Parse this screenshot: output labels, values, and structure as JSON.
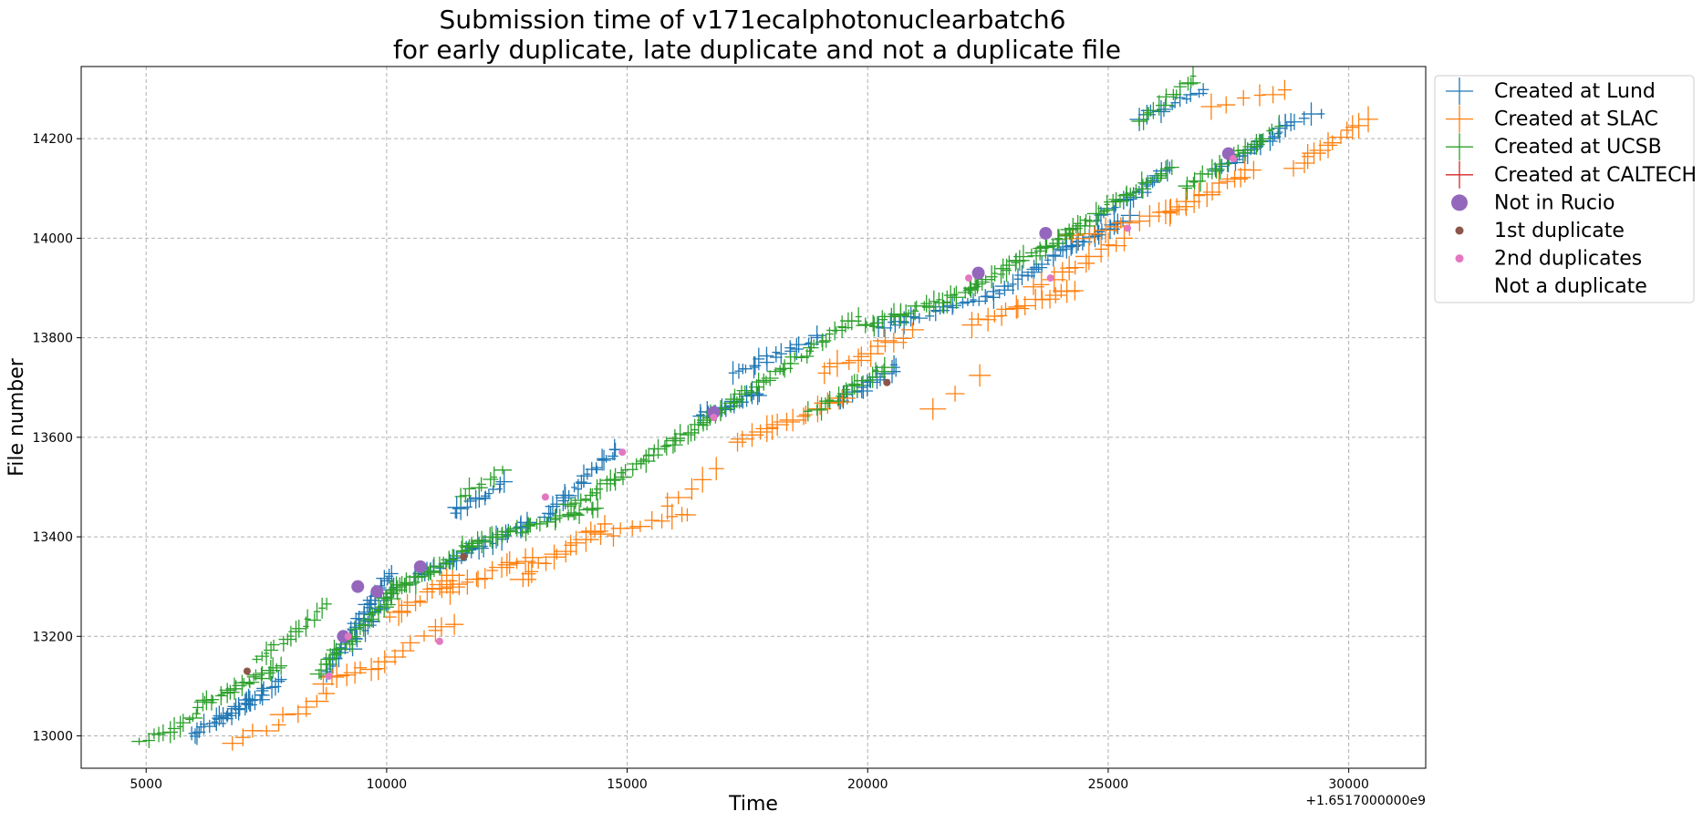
{
  "chart_data": {
    "type": "scatter",
    "title": "Submission time of v171ecalphotonuclearbatch6",
    "subtitle": "for early duplicate, late duplicate and not a duplicate file",
    "xlabel": "Time",
    "ylabel": "File number",
    "x_offset_label": "+1.6517000000e9",
    "xlim": [
      3650,
      31600
    ],
    "ylim": [
      12935,
      14345
    ],
    "x_ticks": [
      5000,
      10000,
      15000,
      20000,
      25000,
      30000
    ],
    "x_tick_labels": [
      "5000",
      "10000",
      "15000",
      "20000",
      "25000",
      "30000"
    ],
    "y_ticks": [
      13000,
      13200,
      13400,
      13600,
      13800,
      14000,
      14200
    ],
    "y_tick_labels": [
      "13000",
      "13200",
      "13400",
      "13600",
      "13800",
      "14000",
      "14200"
    ],
    "grid": true,
    "legend_position": "outside-top-right",
    "colors": {
      "lund": "#1f77b4",
      "slac": "#ff7f0e",
      "ucsb": "#2ca02c",
      "caltech": "#d62728",
      "not_in_rucio": "#9467bd",
      "first_duplicate": "#8c564b",
      "second_duplicates": "#e377c2",
      "grid": "#b0b0b0"
    },
    "legend": [
      {
        "label": "Created at Lund",
        "marker": "plus",
        "color": "#1f77b4"
      },
      {
        "label": "Created at SLAC",
        "marker": "plus",
        "color": "#ff7f0e"
      },
      {
        "label": "Created at UCSB",
        "marker": "plus",
        "color": "#2ca02c"
      },
      {
        "label": "Created at CALTECH",
        "marker": "plus",
        "color": "#d62728"
      },
      {
        "label": "Not in Rucio",
        "marker": "circle-large",
        "color": "#9467bd"
      },
      {
        "label": "1st duplicate",
        "marker": "circle-small",
        "color": "#8c564b"
      },
      {
        "label": "2nd duplicates",
        "marker": "circle-small",
        "color": "#e377c2"
      },
      {
        "label": "Not a duplicate",
        "marker": "none",
        "color": "#ffffff"
      }
    ],
    "series": [
      {
        "name": "Created at Lund",
        "marker": "plus",
        "color": "#1f77b4",
        "segments": [
          {
            "x": [
              5900,
              7400
            ],
            "y": [
              13000,
              13080
            ],
            "n": 22
          },
          {
            "x": [
              6500,
              7800
            ],
            "y": [
              13030,
              13110
            ],
            "n": 18
          },
          {
            "x": [
              8700,
              10100
            ],
            "y": [
              13120,
              13330
            ],
            "n": 35
          },
          {
            "x": [
              9300,
              10200
            ],
            "y": [
              13180,
              13300
            ],
            "n": 14
          },
          {
            "x": [
              10600,
              13000
            ],
            "y": [
              13320,
              13430
            ],
            "n": 30
          },
          {
            "x": [
              11400,
              12500
            ],
            "y": [
              13450,
              13510
            ],
            "n": 14
          },
          {
            "x": [
              13300,
              14800
            ],
            "y": [
              13440,
              13580
            ],
            "n": 24
          },
          {
            "x": [
              16500,
              17800
            ],
            "y": [
              13640,
              13690
            ],
            "n": 18
          },
          {
            "x": [
              17200,
              19000
            ],
            "y": [
              13730,
              13800
            ],
            "n": 20
          },
          {
            "x": [
              19400,
              20600
            ],
            "y": [
              13670,
              13740
            ],
            "n": 18
          },
          {
            "x": [
              20200,
              22400
            ],
            "y": [
              13820,
              13880
            ],
            "n": 20
          },
          {
            "x": [
              22500,
              24300
            ],
            "y": [
              13880,
              13990
            ],
            "n": 24
          },
          {
            "x": [
              24200,
              25400
            ],
            "y": [
              13980,
              14040
            ],
            "n": 16
          },
          {
            "x": [
              24800,
              26300
            ],
            "y": [
              14040,
              14140
            ],
            "n": 20
          },
          {
            "x": [
              25700,
              27000
            ],
            "y": [
              14240,
              14300
            ],
            "n": 12
          },
          {
            "x": [
              27200,
              28800
            ],
            "y": [
              14130,
              14230
            ],
            "n": 24
          },
          {
            "x": [
              28600,
              29400
            ],
            "y": [
              14220,
              14250
            ],
            "n": 6
          }
        ]
      },
      {
        "name": "Created at SLAC",
        "marker": "plus",
        "color": "#ff7f0e",
        "segments": [
          {
            "x": [
              6800,
              7700
            ],
            "y": [
              12990,
              13020
            ],
            "n": 5
          },
          {
            "x": [
              7900,
              8700
            ],
            "y": [
              13040,
              13080
            ],
            "n": 5
          },
          {
            "x": [
              8700,
              9800
            ],
            "y": [
              13110,
              13140
            ],
            "n": 8
          },
          {
            "x": [
              9900,
              11400
            ],
            "y": [
              13150,
              13230
            ],
            "n": 8
          },
          {
            "x": [
              10100,
              11400
            ],
            "y": [
              13240,
              13320
            ],
            "n": 12
          },
          {
            "x": [
              11300,
              13000
            ],
            "y": [
              13290,
              13360
            ],
            "n": 14
          },
          {
            "x": [
              12800,
              14500
            ],
            "y": [
              13320,
              13420
            ],
            "n": 14
          },
          {
            "x": [
              14500,
              16300
            ],
            "y": [
              13400,
              13450
            ],
            "n": 10
          },
          {
            "x": [
              15800,
              16900
            ],
            "y": [
              13460,
              13540
            ],
            "n": 5
          },
          {
            "x": [
              17300,
              19500
            ],
            "y": [
              13590,
              13680
            ],
            "n": 16
          },
          {
            "x": [
              19100,
              20900
            ],
            "y": [
              13730,
              13810
            ],
            "n": 12
          },
          {
            "x": [
              21300,
              22300
            ],
            "y": [
              13660,
              13720
            ],
            "n": 3
          },
          {
            "x": [
              22200,
              24300
            ],
            "y": [
              13830,
              13900
            ],
            "n": 16
          },
          {
            "x": [
              23500,
              25300
            ],
            "y": [
              13900,
              14000
            ],
            "n": 12
          },
          {
            "x": [
              24200,
              26600
            ],
            "y": [
              14000,
              14060
            ],
            "n": 14
          },
          {
            "x": [
              26200,
              28000
            ],
            "y": [
              14050,
              14140
            ],
            "n": 14
          },
          {
            "x": [
              27200,
              28700
            ],
            "y": [
              14260,
              14300
            ],
            "n": 6
          },
          {
            "x": [
              28900,
              30400
            ],
            "y": [
              14140,
              14240
            ],
            "n": 12
          }
        ]
      },
      {
        "name": "Created at UCSB",
        "marker": "plus",
        "color": "#2ca02c",
        "segments": [
          {
            "x": [
              4900,
              6100
            ],
            "y": [
              12990,
              13040
            ],
            "n": 12
          },
          {
            "x": [
              6100,
              7800
            ],
            "y": [
              13060,
              13140
            ],
            "n": 26
          },
          {
            "x": [
              7300,
              8800
            ],
            "y": [
              13150,
              13260
            ],
            "n": 16
          },
          {
            "x": [
              8600,
              10400
            ],
            "y": [
              13130,
              13310
            ],
            "n": 35
          },
          {
            "x": [
              9900,
              11800
            ],
            "y": [
              13280,
              13380
            ],
            "n": 30
          },
          {
            "x": [
              11500,
              12400
            ],
            "y": [
              13480,
              13530
            ],
            "n": 8
          },
          {
            "x": [
              11600,
              14400
            ],
            "y": [
              13380,
              13460
            ],
            "n": 34
          },
          {
            "x": [
              13800,
              16900
            ],
            "y": [
              13460,
              13650
            ],
            "n": 42
          },
          {
            "x": [
              16700,
              19800
            ],
            "y": [
              13640,
              13840
            ],
            "n": 40
          },
          {
            "x": [
              18800,
              20400
            ],
            "y": [
              13650,
              13740
            ],
            "n": 18
          },
          {
            "x": [
              19900,
              22300
            ],
            "y": [
              13820,
              13900
            ],
            "n": 30
          },
          {
            "x": [
              22100,
              24400
            ],
            "y": [
              13900,
              14020
            ],
            "n": 30
          },
          {
            "x": [
              24000,
              26300
            ],
            "y": [
              14000,
              14140
            ],
            "n": 30
          },
          {
            "x": [
              25600,
              26800
            ],
            "y": [
              14230,
              14320
            ],
            "n": 14
          },
          {
            "x": [
              26600,
              28500
            ],
            "y": [
              14100,
              14220
            ],
            "n": 26
          }
        ]
      },
      {
        "name": "Not in Rucio",
        "marker": "circle-large",
        "color": "#9467bd",
        "points": [
          [
            9400,
            13300
          ],
          [
            9800,
            13290
          ],
          [
            9100,
            13200
          ],
          [
            10700,
            13340
          ],
          [
            16800,
            13650
          ],
          [
            22300,
            13930
          ],
          [
            23700,
            14010
          ],
          [
            27500,
            14170
          ]
        ]
      },
      {
        "name": "1st duplicate",
        "marker": "circle-small",
        "color": "#8c564b",
        "points": [
          [
            7100,
            13130
          ],
          [
            11600,
            13360
          ],
          [
            20400,
            13710
          ]
        ]
      },
      {
        "name": "2nd duplicates",
        "marker": "circle-small",
        "color": "#e377c2",
        "points": [
          [
            8800,
            13120
          ],
          [
            9200,
            13200
          ],
          [
            11100,
            13190
          ],
          [
            16800,
            13640
          ],
          [
            22100,
            13920
          ],
          [
            23800,
            13920
          ],
          [
            25400,
            14020
          ],
          [
            27600,
            14160
          ],
          [
            13300,
            13480
          ],
          [
            14900,
            13570
          ]
        ]
      }
    ]
  }
}
